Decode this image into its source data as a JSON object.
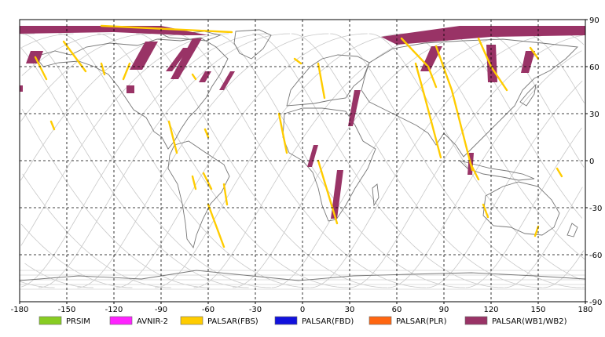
{
  "map": {
    "x_axis": {
      "ticks": [
        -180,
        -150,
        -120,
        -90,
        -60,
        -30,
        0,
        30,
        60,
        90,
        120,
        150,
        180
      ],
      "range": [
        -180,
        180
      ]
    },
    "y_axis": {
      "ticks": [
        90,
        60,
        30,
        0,
        -30,
        -60,
        -90
      ],
      "range": [
        -90,
        90
      ]
    },
    "grid": true,
    "projection": "equirectangular"
  },
  "colors": {
    "PRSIM": "#88cc22",
    "AVNIR-2": "#ff22ff",
    "PALSAR(FBS)": "#ffcc00",
    "PALSAR(FBD)": "#1111dd",
    "PALSAR(PLR)": "#ff6611",
    "PALSAR(WB1/WB2)": "#993366"
  },
  "legend": [
    {
      "label": "PRSIM",
      "key": "PRSIM"
    },
    {
      "label": "AVNIR-2",
      "key": "AVNIR-2"
    },
    {
      "label": "PALSAR(FBS)",
      "key": "PALSAR(FBS)"
    },
    {
      "label": "PALSAR(FBD)",
      "key": "PALSAR(FBD)"
    },
    {
      "label": "PALSAR(PLR)",
      "key": "PALSAR(PLR)"
    },
    {
      "label": "PALSAR(WB1/WB2)",
      "key": "PALSAR(WB1/WB2)"
    }
  ],
  "swaths": [
    {
      "sensor": "PALSAR(WB1/WB2)",
      "poly": [
        [
          -180,
          86
        ],
        [
          -90,
          86
        ],
        [
          -60,
          80
        ],
        [
          -75,
          80
        ],
        [
          -120,
          82
        ],
        [
          -180,
          81
        ]
      ]
    },
    {
      "sensor": "PALSAR(WB1/WB2)",
      "poly": [
        [
          50,
          79
        ],
        [
          100,
          86
        ],
        [
          180,
          86
        ],
        [
          180,
          80
        ],
        [
          120,
          79
        ],
        [
          60,
          74
        ]
      ]
    },
    {
      "sensor": "PALSAR(WB1/WB2)",
      "poly": [
        [
          -173,
          70
        ],
        [
          -165,
          70
        ],
        [
          -168,
          62
        ],
        [
          -176,
          62
        ]
      ]
    },
    {
      "sensor": "PALSAR(WB1/WB2)",
      "poly": [
        [
          -180,
          48
        ],
        [
          -178,
          48
        ],
        [
          -178,
          44
        ],
        [
          -180,
          44
        ]
      ]
    },
    {
      "sensor": "PALSAR(WB1/WB2)",
      "poly": [
        [
          -100,
          76
        ],
        [
          -92,
          76
        ],
        [
          -102,
          58
        ],
        [
          -110,
          58
        ]
      ]
    },
    {
      "sensor": "PALSAR(WB1/WB2)",
      "poly": [
        [
          -112,
          48
        ],
        [
          -107,
          48
        ],
        [
          -107,
          43
        ],
        [
          -112,
          43
        ]
      ]
    },
    {
      "sensor": "PALSAR(WB1/WB2)",
      "poly": [
        [
          -70,
          78
        ],
        [
          -64,
          78
        ],
        [
          -79,
          52
        ],
        [
          -84,
          52
        ]
      ]
    },
    {
      "sensor": "PALSAR(WB1/WB2)",
      "poly": [
        [
          -62,
          57
        ],
        [
          -58,
          57
        ],
        [
          -62,
          50
        ],
        [
          -66,
          50
        ]
      ]
    },
    {
      "sensor": "PALSAR(WB1/WB2)",
      "poly": [
        [
          -76,
          72
        ],
        [
          -72,
          72
        ],
        [
          -83,
          57
        ],
        [
          -87,
          57
        ]
      ]
    },
    {
      "sensor": "PALSAR(WB1/WB2)",
      "poly": [
        [
          -46,
          57
        ],
        [
          -43,
          57
        ],
        [
          -50,
          45
        ],
        [
          -53,
          45
        ]
      ]
    },
    {
      "sensor": "PALSAR(WB1/WB2)",
      "poly": [
        [
          33,
          45
        ],
        [
          37,
          45
        ],
        [
          32,
          22
        ],
        [
          29,
          22
        ]
      ]
    },
    {
      "sensor": "PALSAR(WB1/WB2)",
      "poly": [
        [
          7,
          10
        ],
        [
          10,
          10
        ],
        [
          6,
          -4
        ],
        [
          3,
          -4
        ]
      ]
    },
    {
      "sensor": "PALSAR(WB1/WB2)",
      "poly": [
        [
          22,
          -6
        ],
        [
          26,
          -6
        ],
        [
          22,
          -37
        ],
        [
          18,
          -37
        ]
      ]
    },
    {
      "sensor": "PALSAR(WB1/WB2)",
      "poly": [
        [
          82,
          73
        ],
        [
          89,
          73
        ],
        [
          81,
          57
        ],
        [
          75,
          57
        ]
      ]
    },
    {
      "sensor": "PALSAR(WB1/WB2)",
      "poly": [
        [
          117,
          74
        ],
        [
          123,
          74
        ],
        [
          124,
          50
        ],
        [
          118,
          50
        ]
      ]
    },
    {
      "sensor": "PALSAR(WB1/WB2)",
      "poly": [
        [
          142,
          70
        ],
        [
          148,
          70
        ],
        [
          144,
          56
        ],
        [
          139,
          56
        ]
      ]
    },
    {
      "sensor": "PALSAR(WB1/WB2)",
      "poly": [
        [
          106,
          5
        ],
        [
          109,
          5
        ],
        [
          108,
          -9
        ],
        [
          105,
          -9
        ]
      ]
    }
  ],
  "tracks": [
    {
      "sensor": "PALSAR(FBS)",
      "line": [
        [
          -128,
          86
        ],
        [
          -45,
          82
        ]
      ]
    },
    {
      "sensor": "PALSAR(FBS)",
      "line": [
        [
          -152,
          76
        ],
        [
          -138,
          57
        ]
      ]
    },
    {
      "sensor": "PALSAR(FBS)",
      "line": [
        [
          -170,
          66
        ],
        [
          -163,
          52
        ]
      ]
    },
    {
      "sensor": "PALSAR(FBS)",
      "line": [
        [
          -110,
          62
        ],
        [
          -114,
          52
        ]
      ]
    },
    {
      "sensor": "PALSAR(FBS)",
      "line": [
        [
          -128,
          62
        ],
        [
          -126,
          55
        ]
      ]
    },
    {
      "sensor": "PALSAR(FBS)",
      "line": [
        [
          -160,
          25
        ],
        [
          -158,
          20
        ]
      ]
    },
    {
      "sensor": "PALSAR(FBS)",
      "line": [
        [
          -70,
          55
        ],
        [
          -68,
          52
        ]
      ]
    },
    {
      "sensor": "PALSAR(FBS)",
      "line": [
        [
          -85,
          25
        ],
        [
          -80,
          5
        ]
      ]
    },
    {
      "sensor": "PALSAR(FBS)",
      "line": [
        [
          -62,
          20
        ],
        [
          -60,
          15
        ]
      ]
    },
    {
      "sensor": "PALSAR(FBS)",
      "line": [
        [
          -63,
          -8
        ],
        [
          -58,
          -18
        ]
      ]
    },
    {
      "sensor": "PALSAR(FBS)",
      "line": [
        [
          -50,
          -15
        ],
        [
          -48,
          -28
        ]
      ]
    },
    {
      "sensor": "PALSAR(FBS)",
      "line": [
        [
          -60,
          -28
        ],
        [
          -50,
          -55
        ]
      ]
    },
    {
      "sensor": "PALSAR(FBS)",
      "line": [
        [
          -70,
          -10
        ],
        [
          -68,
          -18
        ]
      ]
    },
    {
      "sensor": "PALSAR(FBS)",
      "line": [
        [
          -15,
          30
        ],
        [
          -10,
          5
        ]
      ]
    },
    {
      "sensor": "PALSAR(FBS)",
      "line": [
        [
          -5,
          65
        ],
        [
          -1,
          62
        ]
      ]
    },
    {
      "sensor": "PALSAR(FBS)",
      "line": [
        [
          10,
          62
        ],
        [
          14,
          40
        ]
      ]
    },
    {
      "sensor": "PALSAR(FBS)",
      "line": [
        [
          10,
          0
        ],
        [
          22,
          -40
        ]
      ]
    },
    {
      "sensor": "PALSAR(FBS)",
      "line": [
        [
          63,
          78
        ],
        [
          80,
          60
        ],
        [
          85,
          47
        ]
      ]
    },
    {
      "sensor": "PALSAR(FBS)",
      "line": [
        [
          72,
          62
        ],
        [
          78,
          40
        ],
        [
          88,
          2
        ]
      ]
    },
    {
      "sensor": "PALSAR(FBS)",
      "line": [
        [
          85,
          73
        ],
        [
          95,
          45
        ],
        [
          108,
          -6
        ]
      ]
    },
    {
      "sensor": "PALSAR(FBS)",
      "line": [
        [
          112,
          78
        ],
        [
          120,
          60
        ],
        [
          130,
          45
        ]
      ]
    },
    {
      "sensor": "PALSAR(FBS)",
      "line": [
        [
          145,
          72
        ],
        [
          150,
          65
        ]
      ]
    },
    {
      "sensor": "PALSAR(FBS)",
      "line": [
        [
          162,
          -5
        ],
        [
          165,
          -10
        ]
      ]
    },
    {
      "sensor": "PALSAR(FBS)",
      "line": [
        [
          150,
          -42
        ],
        [
          148,
          -48
        ]
      ]
    },
    {
      "sensor": "PALSAR(FBS)",
      "line": [
        [
          115,
          -28
        ],
        [
          118,
          -36
        ]
      ]
    },
    {
      "sensor": "PALSAR(FBS)",
      "line": [
        [
          107,
          -2
        ],
        [
          112,
          -12
        ]
      ]
    }
  ]
}
